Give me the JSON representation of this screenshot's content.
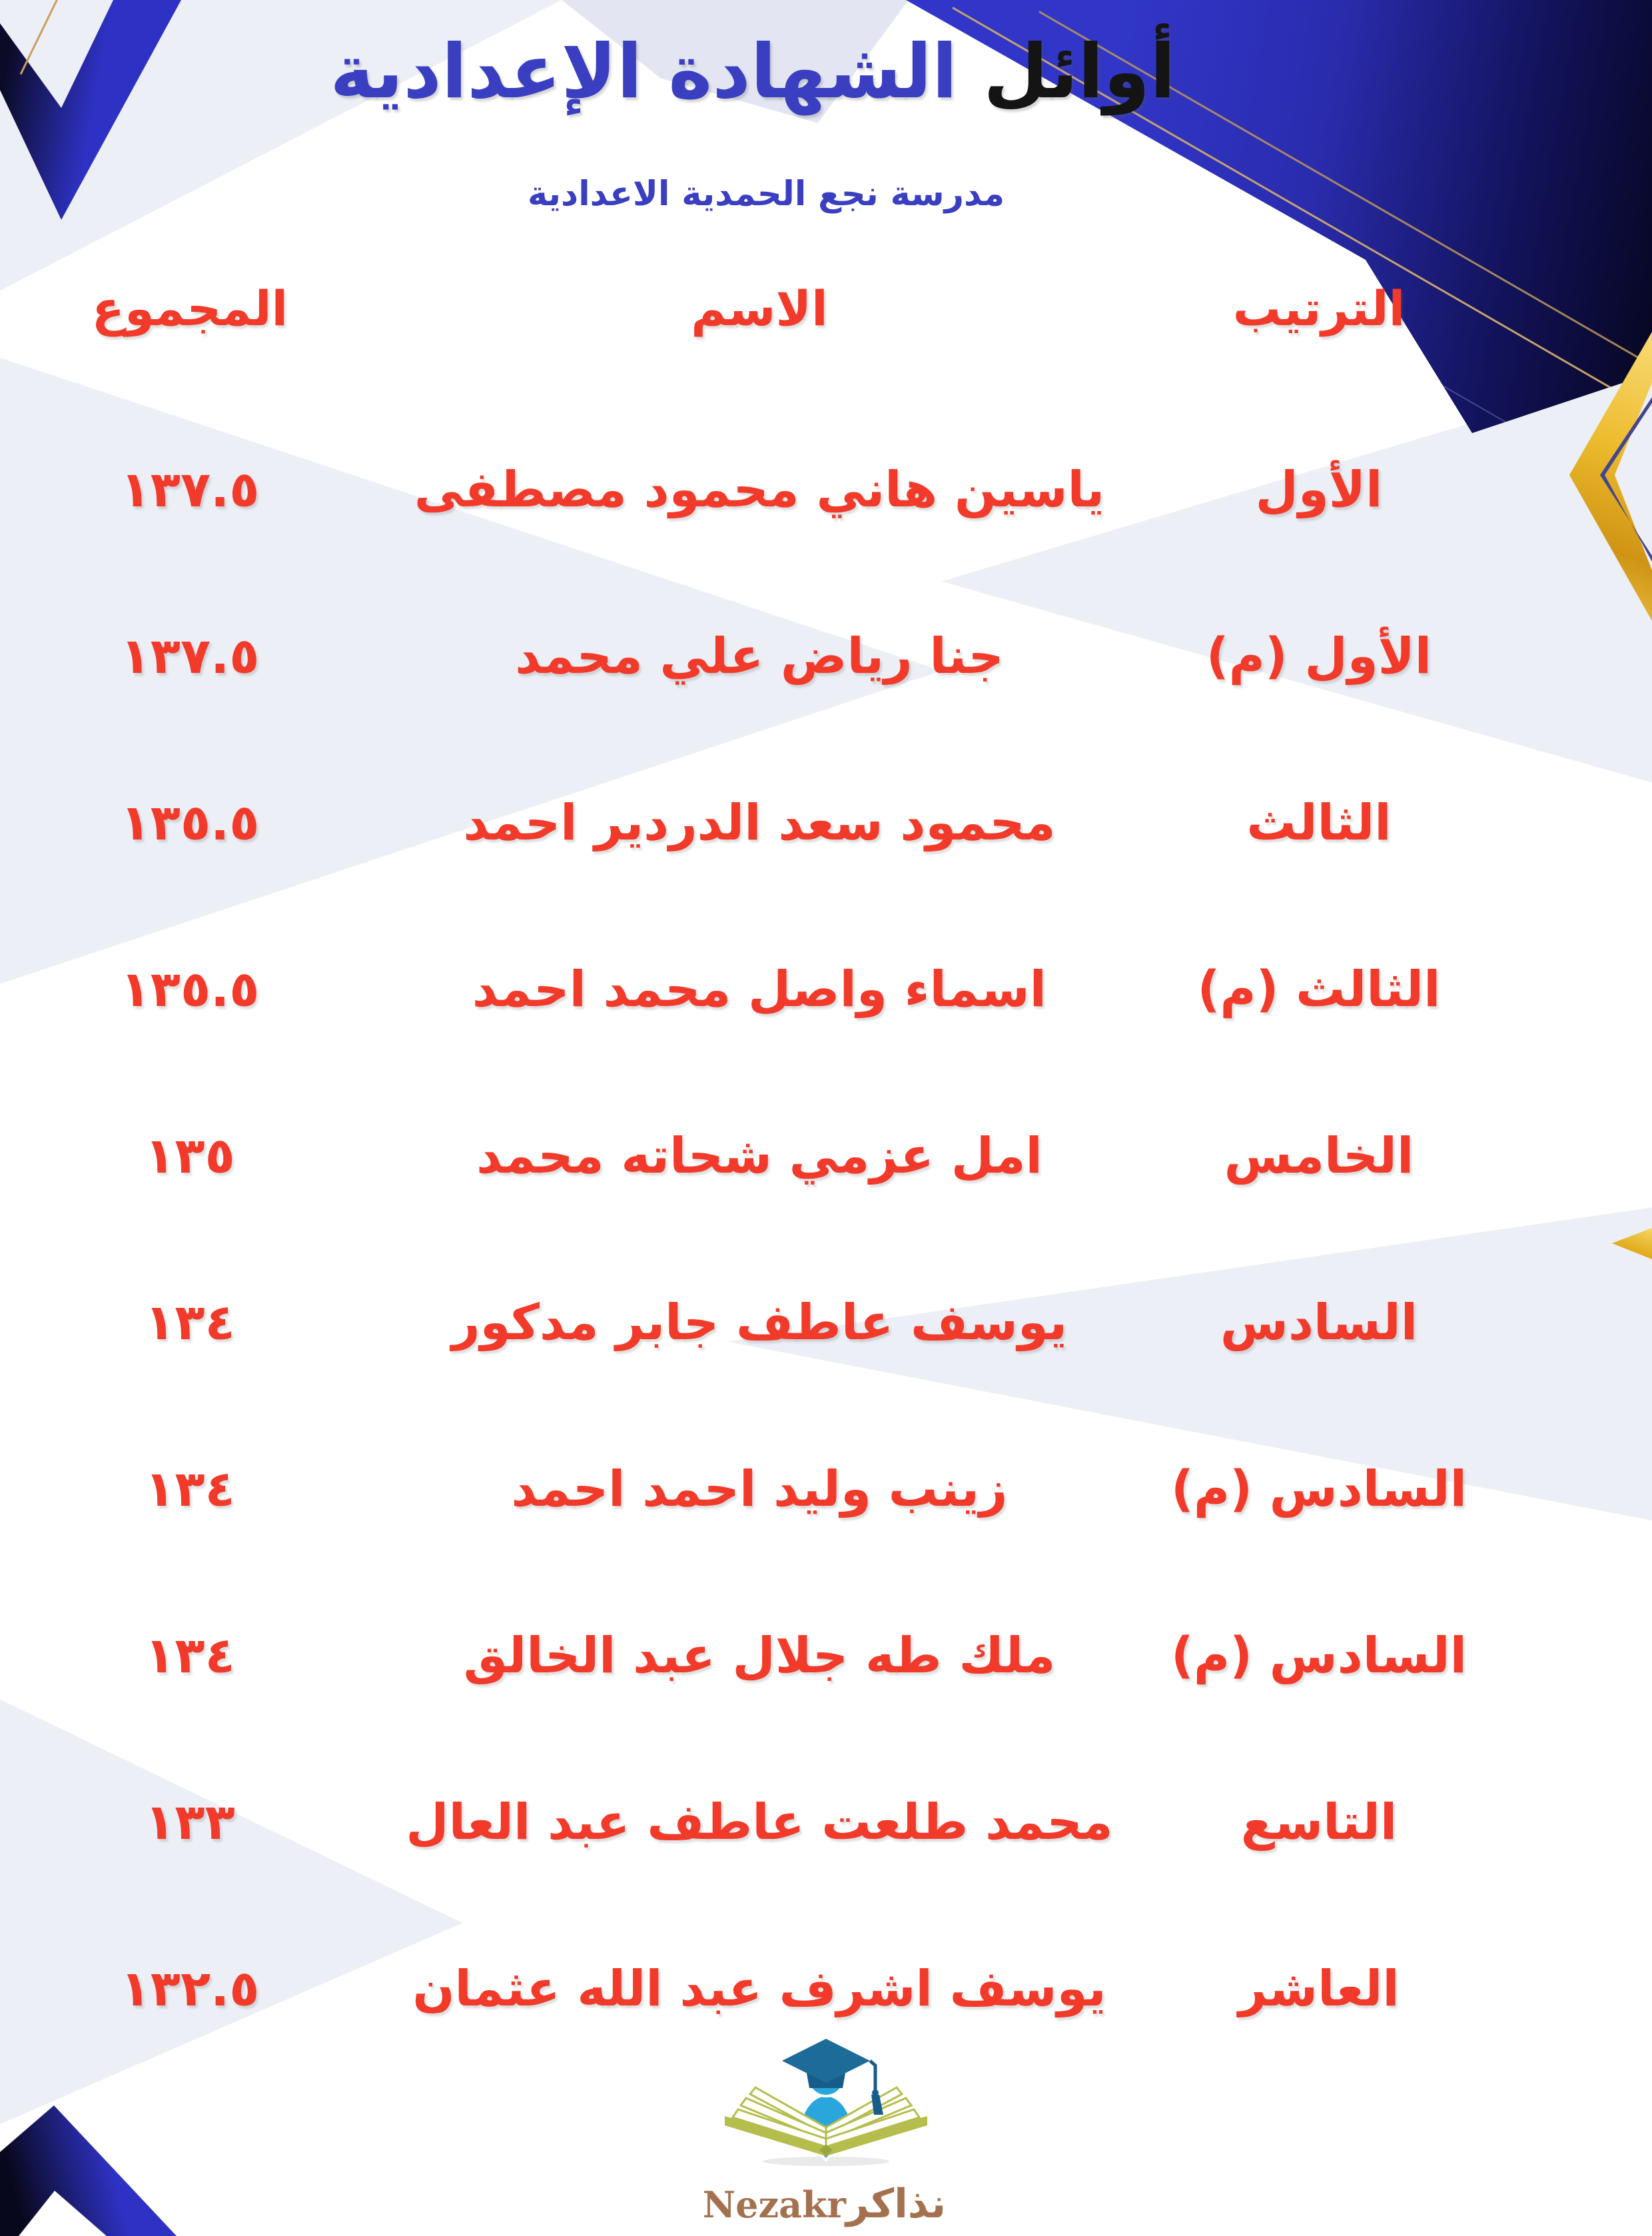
{
  "header": {
    "title_black": "أوائل",
    "title_blue": "الشهادة الإعدادية",
    "subtitle": "مدرسة نجع الحمدية الاعدادية"
  },
  "table": {
    "columns": {
      "rank": "الترتيب",
      "name": "الاسم",
      "total": "المجموع"
    },
    "rows": [
      {
        "rank": "الأول",
        "name": "ياسين هاني محمود مصطفى",
        "total": "١٣٧.٥"
      },
      {
        "rank": "الأول (م)",
        "name": "جنا رياض علي محمد",
        "total": "١٣٧.٥"
      },
      {
        "rank": "الثالث",
        "name": "محمود سعد الدردير احمد",
        "total": "١٣٥.٥"
      },
      {
        "rank": "الثالث (م)",
        "name": "اسماء واصل محمد احمد",
        "total": "١٣٥.٥"
      },
      {
        "rank": "الخامس",
        "name": "امل عزمي شحاته محمد",
        "total": "١٣٥"
      },
      {
        "rank": "السادس",
        "name": "يوسف عاطف جابر مدكور",
        "total": "١٣٤"
      },
      {
        "rank": "السادس (م)",
        "name": "زينب وليد احمد احمد",
        "total": "١٣٤"
      },
      {
        "rank": "السادس (م)",
        "name": "ملك طه جلال عبد الخالق",
        "total": "١٣٤"
      },
      {
        "rank": "التاسع",
        "name": "محمد طلعت عاطف عبد العال",
        "total": "١٣٣"
      },
      {
        "rank": "العاشر",
        "name": "يوسف اشرف عبد الله عثمان",
        "total": "١٣٢.٥"
      }
    ]
  },
  "footer": {
    "logo_arabic": "نذاكر",
    "logo_latin": "Nezakr"
  },
  "colors": {
    "red": "#f23a2b",
    "blue": "#3a3fc1",
    "royal_slab": "#3136c8",
    "navy_dark": "#0a0a2e",
    "gold": "#e7b52a",
    "light_band": "#edeff6",
    "logo_olive": "#b5bd4c",
    "logo_blue": "#29a7dd",
    "logo_cap": "#1d6b99",
    "logo_text_brown": "#a4714f",
    "title_black": "#141414"
  }
}
